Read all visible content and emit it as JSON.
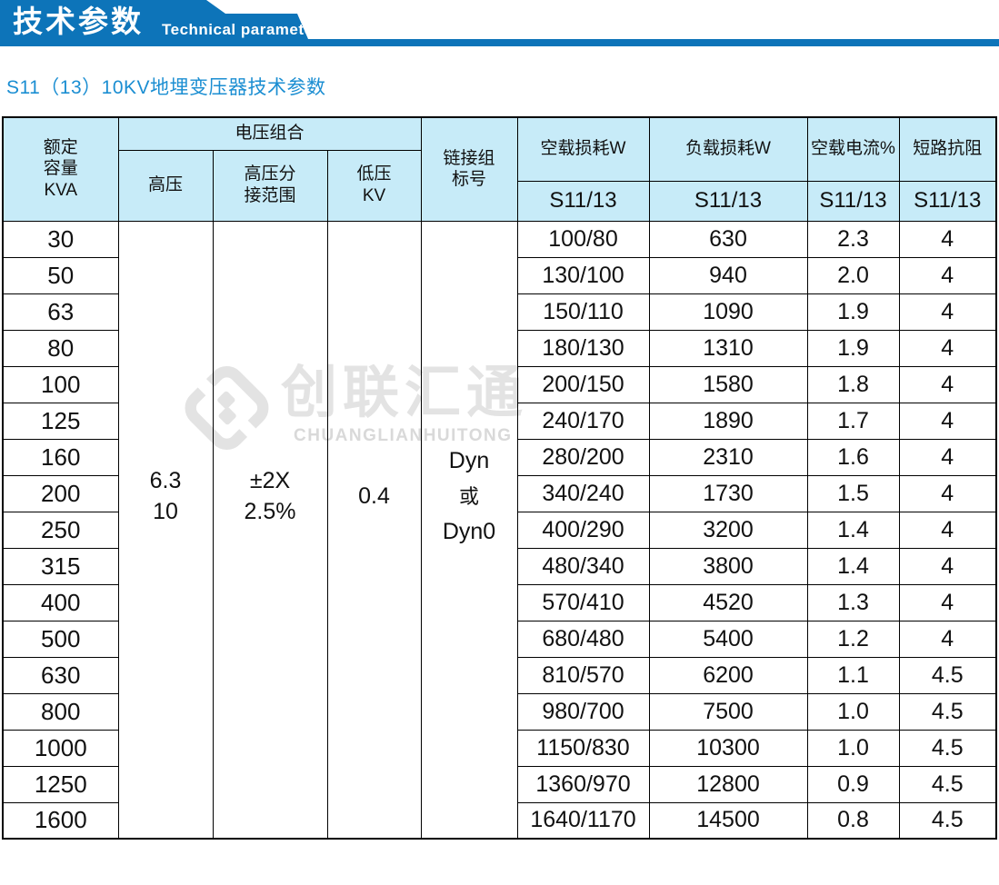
{
  "banner": {
    "title": "技术参数",
    "subtitle": "Technical parameter"
  },
  "page_title": "S11（13）10KV地埋变压器技术参数",
  "watermark": {
    "cn": "创联汇通",
    "en": "CHUANGLIANHUITONG"
  },
  "colors": {
    "banner_blue": "#0d74b9",
    "header_bg": "#c7ebf8",
    "title_blue": "#1b8ed2",
    "watermark_gray": "#e3e3e3",
    "border": "#000000"
  },
  "table": {
    "header": {
      "capacity_lines": [
        "额定",
        "容量",
        "KVA"
      ],
      "voltage_group": "电压组合",
      "hv": "高压",
      "tap_lines": [
        "高压分",
        "接范围"
      ],
      "lv_lines": [
        "低压",
        "KV"
      ],
      "vector_lines": [
        "链接组",
        "标号"
      ],
      "noload_loss": "空载损耗W",
      "load_loss": "负载损耗W",
      "noload_current": "空载电流%",
      "impedance": "短路抗阻",
      "model": "S11/13"
    },
    "merged": {
      "hv": [
        "6.3",
        "10"
      ],
      "tap": [
        "±2X",
        "2.5%"
      ],
      "lv": [
        "0.4"
      ],
      "vector": [
        "Dyn",
        "或",
        "Dyn0"
      ]
    },
    "rows": [
      {
        "kva": "30",
        "noload": "100/80",
        "load": "630",
        "current": "2.3",
        "impedance": "4"
      },
      {
        "kva": "50",
        "noload": "130/100",
        "load": "940",
        "current": "2.0",
        "impedance": "4"
      },
      {
        "kva": "63",
        "noload": "150/110",
        "load": "1090",
        "current": "1.9",
        "impedance": "4"
      },
      {
        "kva": "80",
        "noload": "180/130",
        "load": "1310",
        "current": "1.9",
        "impedance": "4"
      },
      {
        "kva": "100",
        "noload": "200/150",
        "load": "1580",
        "current": "1.8",
        "impedance": "4"
      },
      {
        "kva": "125",
        "noload": "240/170",
        "load": "1890",
        "current": "1.7",
        "impedance": "4"
      },
      {
        "kva": "160",
        "noload": "280/200",
        "load": "2310",
        "current": "1.6",
        "impedance": "4"
      },
      {
        "kva": "200",
        "noload": "340/240",
        "load": "1730",
        "current": "1.5",
        "impedance": "4"
      },
      {
        "kva": "250",
        "noload": "400/290",
        "load": "3200",
        "current": "1.4",
        "impedance": "4"
      },
      {
        "kva": "315",
        "noload": "480/340",
        "load": "3800",
        "current": "1.4",
        "impedance": "4"
      },
      {
        "kva": "400",
        "noload": "570/410",
        "load": "4520",
        "current": "1.3",
        "impedance": "4"
      },
      {
        "kva": "500",
        "noload": "680/480",
        "load": "5400",
        "current": "1.2",
        "impedance": "4"
      },
      {
        "kva": "630",
        "noload": "810/570",
        "load": "6200",
        "current": "1.1",
        "impedance": "4.5"
      },
      {
        "kva": "800",
        "noload": "980/700",
        "load": "7500",
        "current": "1.0",
        "impedance": "4.5"
      },
      {
        "kva": "1000",
        "noload": "1150/830",
        "load": "10300",
        "current": "1.0",
        "impedance": "4.5"
      },
      {
        "kva": "1250",
        "noload": "1360/970",
        "load": "12800",
        "current": "0.9",
        "impedance": "4.5"
      },
      {
        "kva": "1600",
        "noload": "1640/1170",
        "load": "14500",
        "current": "0.8",
        "impedance": "4.5"
      }
    ]
  }
}
